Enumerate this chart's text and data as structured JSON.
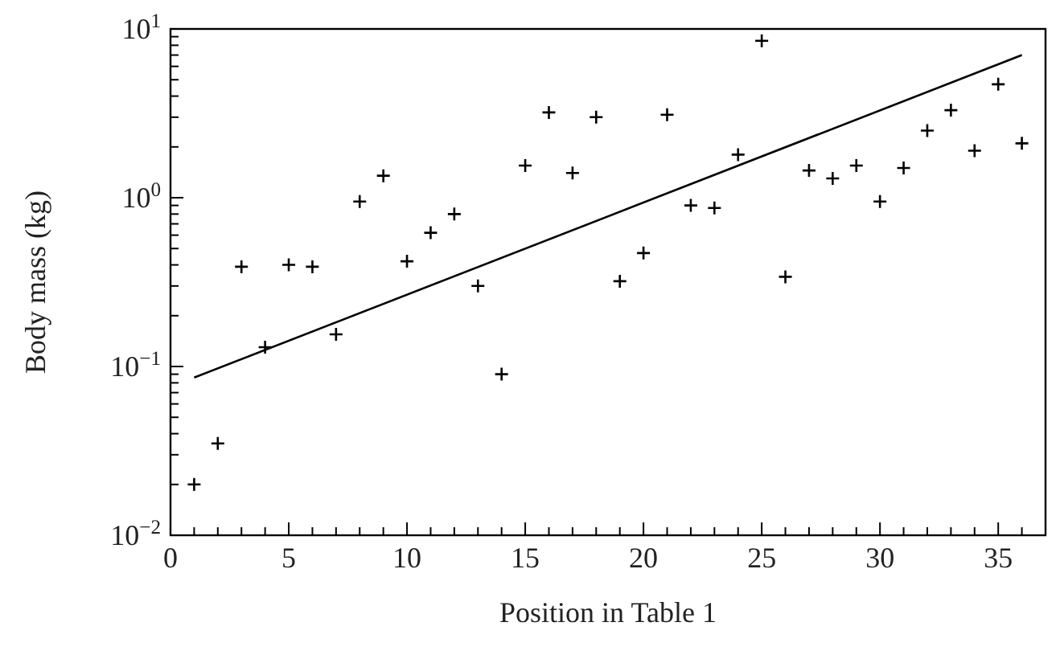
{
  "chart_data": {
    "type": "scatter",
    "xlabel": "Position in Table 1",
    "ylabel": "Body mass (kg)",
    "log": "y",
    "grid": false,
    "marker": "cross",
    "xlim": [
      0,
      37
    ],
    "ylim": [
      0.01,
      10
    ],
    "xticks": [
      0,
      {
        "value": 1,
        "label": null
      },
      {
        "value": 2,
        "label": null
      },
      {
        "value": 3,
        "label": null
      },
      {
        "value": 4,
        "label": null
      },
      5,
      {
        "value": 6,
        "label": null
      },
      {
        "value": 7,
        "label": null
      },
      {
        "value": 8,
        "label": null
      },
      {
        "value": 9,
        "label": null
      },
      10,
      {
        "value": 11,
        "label": null
      },
      {
        "value": 12,
        "label": null
      },
      {
        "value": 13,
        "label": null
      },
      {
        "value": 14,
        "label": null
      },
      15,
      {
        "value": 16,
        "label": null
      },
      {
        "value": 17,
        "label": null
      },
      {
        "value": 18,
        "label": null
      },
      {
        "value": 19,
        "label": null
      },
      20,
      {
        "value": 21,
        "label": null
      },
      {
        "value": 22,
        "label": null
      },
      {
        "value": 23,
        "label": null
      },
      {
        "value": 24,
        "label": null
      },
      25,
      {
        "value": 26,
        "label": null
      },
      {
        "value": 27,
        "label": null
      },
      {
        "value": 28,
        "label": null
      },
      {
        "value": 29,
        "label": null
      },
      30,
      {
        "value": 31,
        "label": null
      },
      {
        "value": 32,
        "label": null
      },
      {
        "value": 33,
        "label": null
      },
      {
        "value": 34,
        "label": null
      },
      35,
      {
        "value": 36,
        "label": null
      }
    ],
    "yticks": [
      {
        "value": 0.01,
        "label": "10$^{−2}$"
      },
      {
        "value": 0.02,
        "label": null
      },
      {
        "value": 0.03,
        "label": null
      },
      {
        "value": 0.04,
        "label": null
      },
      {
        "value": 0.05,
        "label": null
      },
      {
        "value": 0.06,
        "label": null
      },
      {
        "value": 0.07,
        "label": null
      },
      {
        "value": 0.08,
        "label": null
      },
      {
        "value": 0.09,
        "label": null
      },
      {
        "value": 0.1,
        "label": "10$^{−1}$"
      },
      {
        "value": 0.2,
        "label": null
      },
      {
        "value": 0.3,
        "label": null
      },
      {
        "value": 0.4,
        "label": null
      },
      {
        "value": 0.5,
        "label": null
      },
      {
        "value": 0.6,
        "label": null
      },
      {
        "value": 0.7,
        "label": null
      },
      {
        "value": 0.8,
        "label": null
      },
      {
        "value": 0.9,
        "label": null
      },
      {
        "value": 1,
        "label": "10$^{0}$"
      },
      {
        "value": 2,
        "label": null
      },
      {
        "value": 3,
        "label": null
      },
      {
        "value": 4,
        "label": null
      },
      {
        "value": 5,
        "label": null
      },
      {
        "value": 6,
        "label": null
      },
      {
        "value": 7,
        "label": null
      },
      {
        "value": 8,
        "label": null
      },
      {
        "value": 9,
        "label": null
      },
      {
        "value": 10,
        "label": "10$^{1}$"
      }
    ],
    "series": [
      {
        "color": "#000000",
        "x": [
          1,
          2,
          3,
          4,
          5,
          6,
          7,
          8,
          9,
          10,
          11,
          12,
          13,
          14,
          15,
          16,
          17,
          18,
          19,
          20,
          21,
          22,
          23,
          24,
          25,
          26,
          27,
          28,
          29,
          30,
          31,
          32,
          33,
          34,
          35,
          36
        ],
        "values": [
          0.02,
          0.035,
          0.39,
          0.13,
          0.4,
          0.39,
          0.155,
          0.95,
          1.35,
          0.42,
          0.62,
          0.8,
          0.3,
          0.09,
          1.55,
          3.2,
          1.4,
          3.0,
          0.32,
          0.47,
          3.1,
          0.9,
          0.87,
          1.8,
          8.5,
          0.34,
          1.45,
          1.3,
          1.55,
          0.95,
          1.5,
          2.5,
          3.3,
          1.9,
          4.7,
          2.1
        ]
      },
      {
        "type": "line",
        "color": "#000000",
        "marker": "none",
        "line_style": "solid",
        "x": [
          1,
          36
        ],
        "values": [
          0.086,
          7.0
        ]
      }
    ]
  }
}
